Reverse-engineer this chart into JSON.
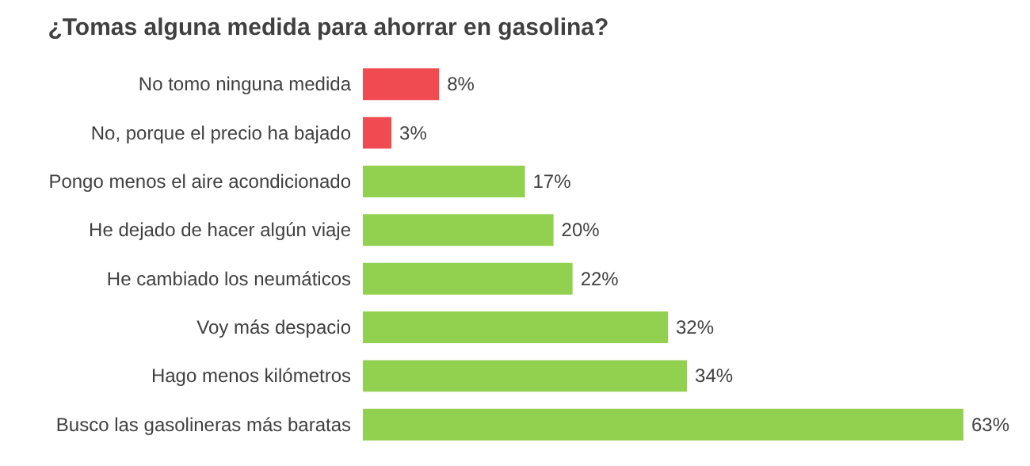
{
  "chart_data": {
    "type": "bar",
    "orientation": "horizontal",
    "title": "¿Tomas alguna medida para ahorrar en gasolina?",
    "categories": [
      "No tomo ninguna medida",
      "No, porque el precio ha bajado",
      "Pongo menos el aire acondicionado",
      "He dejado de hacer algún viaje",
      "He cambiado los neumáticos",
      "Voy más despacio",
      "Hago menos kilómetros",
      "Busco las gasolineras más baratas"
    ],
    "values": [
      8,
      3,
      17,
      20,
      22,
      32,
      34,
      63
    ],
    "colors": [
      "#f04b51",
      "#f04b51",
      "#92d050",
      "#92d050",
      "#92d050",
      "#92d050",
      "#92d050",
      "#92d050"
    ],
    "value_labels": [
      "8%",
      "3%",
      "17%",
      "20%",
      "22%",
      "32%",
      "34%",
      "63%"
    ],
    "grid": false
  }
}
